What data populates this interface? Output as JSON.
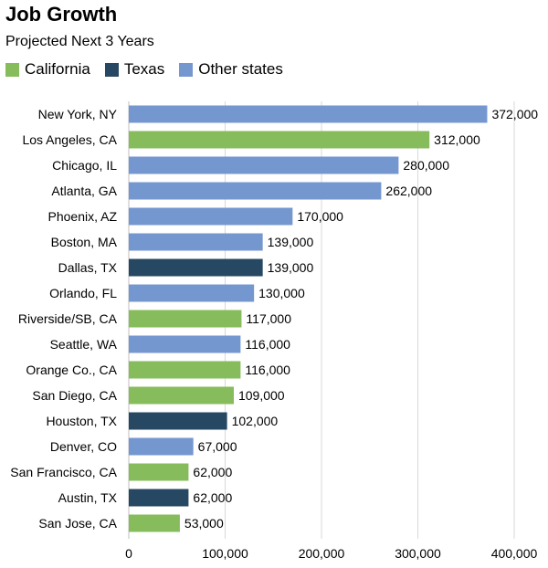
{
  "chart_data": {
    "type": "bar",
    "orientation": "horizontal",
    "title": "Job Growth",
    "subtitle": "Projected Next 3 Years",
    "legend": [
      {
        "name": "California",
        "color": "#86bc5b"
      },
      {
        "name": "Texas",
        "color": "#264863"
      },
      {
        "name": "Other states",
        "color": "#7597d0"
      }
    ],
    "categories": [
      "New York, NY",
      "Los Angeles, CA",
      "Chicago, IL",
      "Atlanta, GA",
      "Phoenix, AZ",
      "Boston, MA",
      "Dallas, TX",
      "Orlando, FL",
      "Riverside/SB, CA",
      "Seattle, WA",
      "Orange Co., CA",
      "San Diego, CA",
      "Houston, TX",
      "Denver, CO",
      "San Francisco, CA",
      "Austin, TX",
      "San Jose, CA"
    ],
    "values": [
      372000,
      312000,
      280000,
      262000,
      170000,
      139000,
      139000,
      130000,
      117000,
      116000,
      116000,
      109000,
      102000,
      67000,
      62000,
      62000,
      53000
    ],
    "value_labels": [
      "372,000",
      "312,000",
      "280,000",
      "262,000",
      "170,000",
      "139,000",
      "139,000",
      "130,000",
      "117,000",
      "116,000",
      "116,000",
      "109,000",
      "102,000",
      "67,000",
      "62,000",
      "62,000",
      "53,000"
    ],
    "groups": [
      "Other states",
      "California",
      "Other states",
      "Other states",
      "Other states",
      "Other states",
      "Texas",
      "Other states",
      "California",
      "Other states",
      "California",
      "California",
      "Texas",
      "Other states",
      "California",
      "Texas",
      "California"
    ],
    "xlim": [
      0,
      400000
    ],
    "xticks": [
      0,
      100000,
      200000,
      300000,
      400000
    ],
    "xtick_labels": [
      "0",
      "100,000",
      "200,000",
      "300,000",
      "400,000"
    ],
    "grid": "vertical"
  }
}
